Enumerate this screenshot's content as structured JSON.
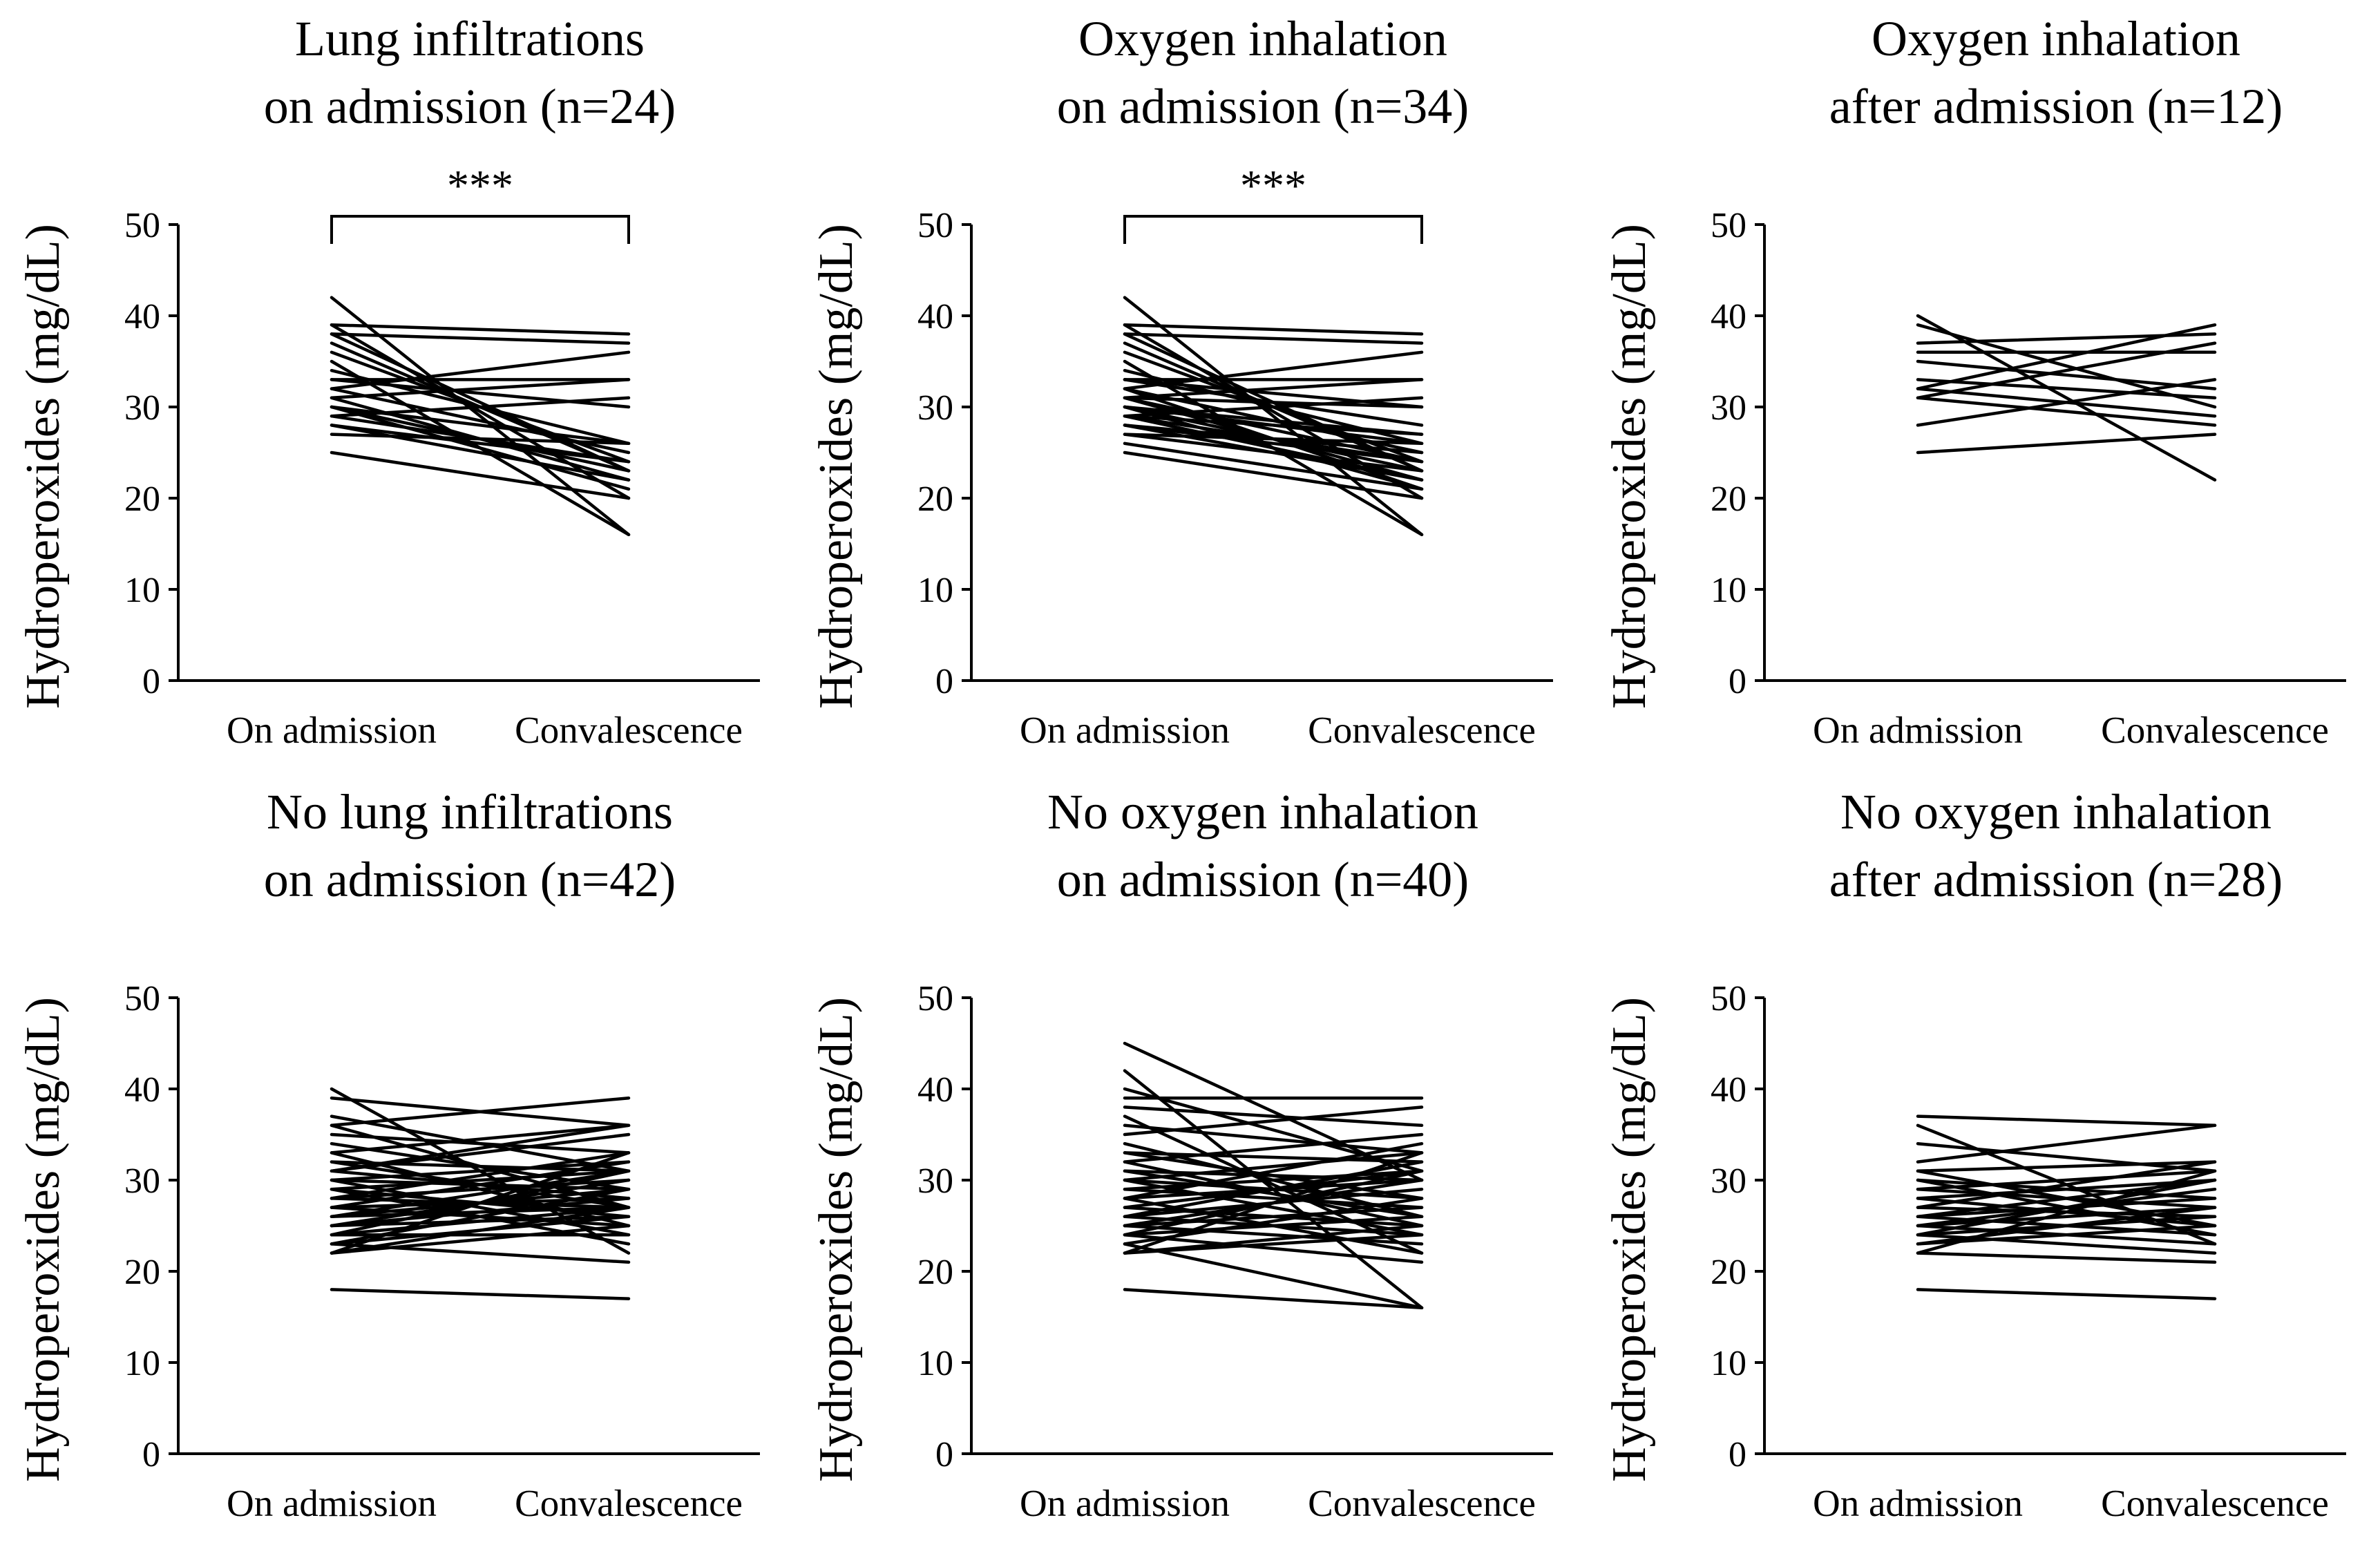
{
  "chart_data": [
    {
      "type": "line",
      "title": [
        "Lung infiltrations",
        "on admission (n=24)"
      ],
      "ylabel": "Hydroperoxides (mg/dL)",
      "categories": [
        "On admission",
        "Convalescence"
      ],
      "ylim": [
        0,
        50
      ],
      "yticks": [
        0,
        10,
        20,
        30,
        40,
        50
      ],
      "significance": "***",
      "pairs": [
        [
          42,
          16
        ],
        [
          39,
          38
        ],
        [
          39,
          20
        ],
        [
          38,
          23
        ],
        [
          38,
          37
        ],
        [
          37,
          23
        ],
        [
          36,
          24
        ],
        [
          35,
          16
        ],
        [
          34,
          26
        ],
        [
          33,
          33
        ],
        [
          33,
          30
        ],
        [
          32,
          36
        ],
        [
          32,
          25
        ],
        [
          31,
          33
        ],
        [
          31,
          22
        ],
        [
          30,
          23
        ],
        [
          30,
          26
        ],
        [
          30,
          21
        ],
        [
          29,
          24
        ],
        [
          29,
          31
        ],
        [
          28,
          24
        ],
        [
          28,
          22
        ],
        [
          27,
          26
        ],
        [
          25,
          20
        ]
      ]
    },
    {
      "type": "line",
      "title": [
        "Oxygen inhalation",
        "on admission (n=34)"
      ],
      "ylabel": "Hydroperoxides (mg/dL)",
      "categories": [
        "On admission",
        "Convalescence"
      ],
      "ylim": [
        0,
        50
      ],
      "yticks": [
        0,
        10,
        20,
        30,
        40,
        50
      ],
      "significance": "***",
      "pairs": [
        [
          42,
          16
        ],
        [
          39,
          38
        ],
        [
          39,
          20
        ],
        [
          38,
          23
        ],
        [
          38,
          37
        ],
        [
          37,
          23
        ],
        [
          36,
          24
        ],
        [
          35,
          16
        ],
        [
          34,
          26
        ],
        [
          33,
          33
        ],
        [
          33,
          30
        ],
        [
          32,
          36
        ],
        [
          32,
          25
        ],
        [
          31,
          33
        ],
        [
          31,
          22
        ],
        [
          30,
          23
        ],
        [
          30,
          26
        ],
        [
          30,
          21
        ],
        [
          29,
          24
        ],
        [
          29,
          31
        ],
        [
          28,
          24
        ],
        [
          28,
          22
        ],
        [
          27,
          26
        ],
        [
          25,
          20
        ],
        [
          33,
          28
        ],
        [
          32,
          21
        ],
        [
          31,
          24
        ],
        [
          30,
          27
        ],
        [
          29,
          22
        ],
        [
          28,
          25
        ],
        [
          27,
          23
        ],
        [
          26,
          21
        ],
        [
          31,
          30
        ],
        [
          29,
          27
        ]
      ]
    },
    {
      "type": "line",
      "title": [
        "Oxygen inhalation",
        "after admission (n=12)"
      ],
      "ylabel": "Hydroperoxides (mg/dL)",
      "categories": [
        "On admission",
        "Convalescence"
      ],
      "ylim": [
        0,
        50
      ],
      "yticks": [
        0,
        10,
        20,
        30,
        40,
        50
      ],
      "significance": "",
      "pairs": [
        [
          40,
          22
        ],
        [
          39,
          30
        ],
        [
          37,
          38
        ],
        [
          36,
          36
        ],
        [
          35,
          32
        ],
        [
          33,
          31
        ],
        [
          32,
          39
        ],
        [
          32,
          29
        ],
        [
          31,
          37
        ],
        [
          31,
          28
        ],
        [
          28,
          33
        ],
        [
          25,
          27
        ]
      ]
    },
    {
      "type": "line",
      "title": [
        "No lung infiltrations",
        "on admission (n=42)"
      ],
      "ylabel": "Hydroperoxides (mg/dL)",
      "categories": [
        "On admission",
        "Convalescence"
      ],
      "ylim": [
        0,
        50
      ],
      "yticks": [
        0,
        10,
        20,
        30,
        40,
        50
      ],
      "significance": "",
      "pairs": [
        [
          40,
          22
        ],
        [
          39,
          36
        ],
        [
          37,
          31
        ],
        [
          36,
          39
        ],
        [
          36,
          27
        ],
        [
          35,
          33
        ],
        [
          34,
          29
        ],
        [
          33,
          36
        ],
        [
          33,
          25
        ],
        [
          32,
          31
        ],
        [
          32,
          27
        ],
        [
          31,
          35
        ],
        [
          31,
          28
        ],
        [
          30,
          32
        ],
        [
          30,
          24
        ],
        [
          30,
          29
        ],
        [
          29,
          31
        ],
        [
          29,
          26
        ],
        [
          28,
          33
        ],
        [
          28,
          27
        ],
        [
          28,
          30
        ],
        [
          27,
          25
        ],
        [
          27,
          32
        ],
        [
          27,
          28
        ],
        [
          26,
          29
        ],
        [
          26,
          27
        ],
        [
          26,
          31
        ],
        [
          25,
          26
        ],
        [
          25,
          28
        ],
        [
          25,
          30
        ],
        [
          24,
          24
        ],
        [
          24,
          27
        ],
        [
          24,
          31
        ],
        [
          23,
          21
        ],
        [
          23,
          26
        ],
        [
          23,
          29
        ],
        [
          22,
          25
        ],
        [
          22,
          27
        ],
        [
          22,
          33
        ],
        [
          31,
          36
        ],
        [
          29,
          23
        ],
        [
          18,
          17
        ]
      ]
    },
    {
      "type": "line",
      "title": [
        "No oxygen inhalation",
        "on admission (n=40)"
      ],
      "ylabel": "Hydroperoxides (mg/dL)",
      "categories": [
        "On admission",
        "Convalescence"
      ],
      "ylim": [
        0,
        50
      ],
      "yticks": [
        0,
        10,
        20,
        30,
        40,
        50
      ],
      "significance": "",
      "pairs": [
        [
          45,
          30
        ],
        [
          42,
          16
        ],
        [
          40,
          31
        ],
        [
          39,
          39
        ],
        [
          38,
          36
        ],
        [
          37,
          22
        ],
        [
          36,
          33
        ],
        [
          35,
          38
        ],
        [
          34,
          26
        ],
        [
          33,
          32
        ],
        [
          33,
          28
        ],
        [
          32,
          35
        ],
        [
          32,
          25
        ],
        [
          31,
          30
        ],
        [
          31,
          26
        ],
        [
          30,
          33
        ],
        [
          30,
          24
        ],
        [
          29,
          31
        ],
        [
          29,
          27
        ],
        [
          28,
          34
        ],
        [
          28,
          22
        ],
        [
          28,
          30
        ],
        [
          27,
          25
        ],
        [
          27,
          31
        ],
        [
          26,
          29
        ],
        [
          26,
          24
        ],
        [
          26,
          32
        ],
        [
          25,
          27
        ],
        [
          25,
          23
        ],
        [
          25,
          30
        ],
        [
          24,
          26
        ],
        [
          24,
          21
        ],
        [
          24,
          31
        ],
        [
          23,
          16
        ],
        [
          23,
          28
        ],
        [
          22,
          25
        ],
        [
          22,
          33
        ],
        [
          22,
          24
        ],
        [
          30,
          28
        ],
        [
          18,
          16
        ]
      ]
    },
    {
      "type": "line",
      "title": [
        "No oxygen inhalation",
        "after admission (n=28)"
      ],
      "ylabel": "Hydroperoxides (mg/dL)",
      "categories": [
        "On admission",
        "Convalescence"
      ],
      "ylim": [
        0,
        50
      ],
      "yticks": [
        0,
        10,
        20,
        30,
        40,
        50
      ],
      "significance": "",
      "pairs": [
        [
          37,
          36
        ],
        [
          36,
          23
        ],
        [
          34,
          31
        ],
        [
          32,
          36
        ],
        [
          31,
          25
        ],
        [
          31,
          32
        ],
        [
          30,
          28
        ],
        [
          30,
          24
        ],
        [
          29,
          31
        ],
        [
          29,
          27
        ],
        [
          28,
          25
        ],
        [
          28,
          30
        ],
        [
          27,
          32
        ],
        [
          27,
          26
        ],
        [
          26,
          28
        ],
        [
          26,
          24
        ],
        [
          26,
          30
        ],
        [
          25,
          27
        ],
        [
          25,
          29
        ],
        [
          25,
          23
        ],
        [
          24,
          26
        ],
        [
          24,
          30
        ],
        [
          24,
          22
        ],
        [
          23,
          25
        ],
        [
          23,
          27
        ],
        [
          22,
          21
        ],
        [
          22,
          31
        ],
        [
          18,
          17
        ]
      ]
    }
  ]
}
